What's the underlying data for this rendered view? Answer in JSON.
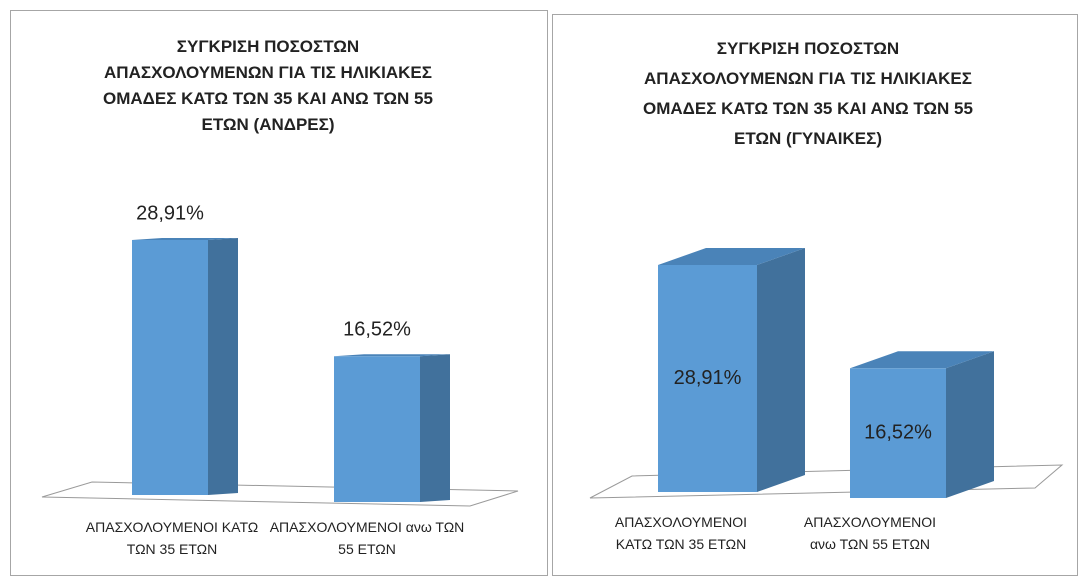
{
  "chart_data": [
    {
      "type": "bar3d",
      "title": "ΣΥΓΚΡΙΣΗ ΠΟΣΟΣΤΩΝ\nΑΠΑΣΧΟΛΟΥΜΕΝΩΝ ΓΙΑ ΤΙΣ ΗΛΙΚΙΑΚΕΣ\nΟΜΑΔΕΣ ΚΑΤΩ ΤΩΝ 35 ΚΑΙ ΑΝΩ ΤΩΝ 55\nΕΤΩΝ (ΑΝΔΡΕΣ)",
      "categories": [
        "ΑΠΑΣΧΟΛΟΥΜΕΝΟΙ ΚΑΤΩ ΤΩΝ 35 ΕΤΩΝ",
        "ΑΠΑΣΧΟΛΟΥΜΕΝΟΙ ανω ΤΩΝ 55 ΕΤΩΝ"
      ],
      "values": [
        28.91,
        16.52
      ],
      "value_labels": [
        "28,91%",
        "16,52%"
      ],
      "color": "#5b9bd5"
    },
    {
      "type": "bar3d",
      "title": "ΣΥΓΚΡΙΣΗ ΠΟΣΟΣΤΩΝ\nΑΠΑΣΧΟΛΟΥΜΕΝΩΝ ΓΙΑ ΤΙΣ ΗΛΙΚΙΑΚΕΣ\nΟΜΑΔΕΣ ΚΑΤΩ ΤΩΝ 35 ΚΑΙ ΑΝΩ ΤΩΝ 55\nΕΤΩΝ (ΓΥΝΑΙΚΕΣ)",
      "categories": [
        "ΑΠΑΣΧΟΛΟΥΜΕΝΟΙ ΚΑΤΩ ΤΩΝ 35 ΕΤΩΝ",
        "ΑΠΑΣΧΟΛΟΥΜΕΝΟΙ ανω ΤΩΝ 55 ΕΤΩΝ"
      ],
      "values": [
        28.91,
        16.52
      ],
      "value_labels": [
        "28,91%",
        "16,52%"
      ],
      "color": "#5b9bd5"
    }
  ]
}
